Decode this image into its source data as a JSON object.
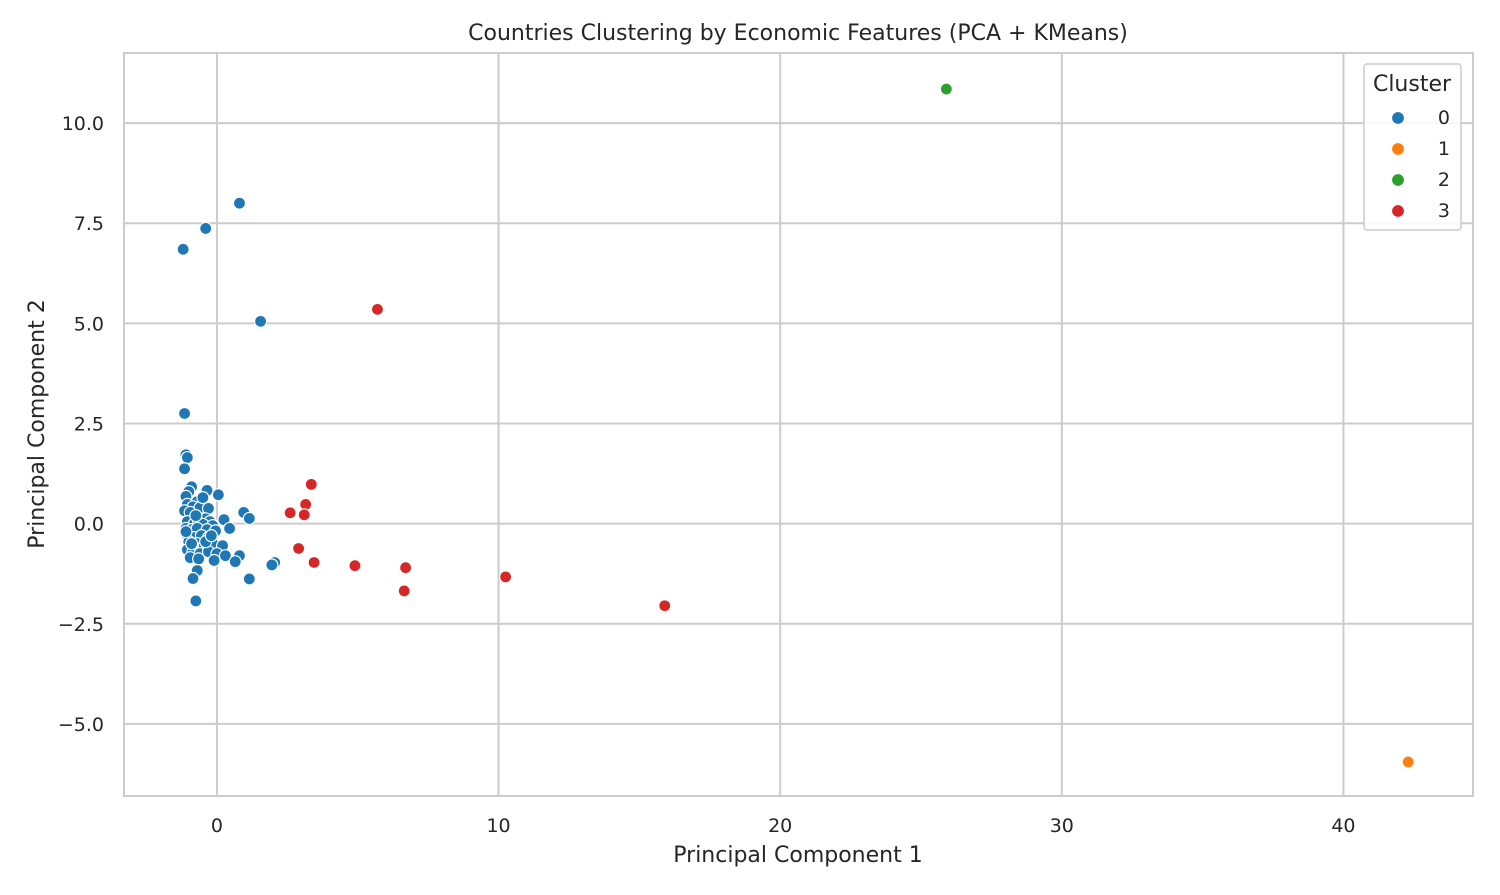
{
  "chart_data": {
    "type": "scatter",
    "title": "Countries Clustering by Economic Features (PCA + KMeans)",
    "xlabel": "Principal Component 1",
    "ylabel": "Principal Component 2",
    "xlim": [
      -3.3,
      44.6
    ],
    "ylim": [
      -6.8,
      11.75
    ],
    "xticks": [
      0,
      10,
      20,
      30,
      40
    ],
    "xtick_labels": [
      "0",
      "10",
      "20",
      "30",
      "40"
    ],
    "yticks": [
      -5.0,
      -2.5,
      0.0,
      2.5,
      5.0,
      7.5,
      10.0
    ],
    "ytick_labels": [
      "−5.0",
      "−2.5",
      "0.0",
      "2.5",
      "5.0",
      "7.5",
      "10.0"
    ],
    "grid": true,
    "legend": {
      "title": "Cluster",
      "placement": "top-right",
      "entries": [
        "0",
        "1",
        "2",
        "3"
      ]
    },
    "series": [
      {
        "name": "0",
        "color": "#1f77b4",
        "points": [
          [
            -1.2,
            6.85
          ],
          [
            -0.4,
            7.37
          ],
          [
            0.8,
            8.0
          ],
          [
            1.55,
            5.05
          ],
          [
            -1.15,
            2.75
          ],
          [
            -1.1,
            1.72
          ],
          [
            -1.05,
            1.65
          ],
          [
            -1.15,
            1.37
          ],
          [
            -0.9,
            0.92
          ],
          [
            -0.35,
            0.83
          ],
          [
            0.05,
            0.72
          ],
          [
            -1.0,
            0.8
          ],
          [
            -1.1,
            0.68
          ],
          [
            -0.7,
            0.55
          ],
          [
            -1.05,
            0.48
          ],
          [
            -0.85,
            0.42
          ],
          [
            -0.6,
            0.4
          ],
          [
            -0.3,
            0.38
          ],
          [
            -1.15,
            0.32
          ],
          [
            -0.95,
            0.28
          ],
          [
            -0.4,
            0.12
          ],
          [
            -0.25,
            0.05
          ],
          [
            0.25,
            0.1
          ],
          [
            0.95,
            0.28
          ],
          [
            1.15,
            0.13
          ],
          [
            -1.05,
            0.05
          ],
          [
            -0.8,
            0.0
          ],
          [
            -0.65,
            0.02
          ],
          [
            -0.5,
            -0.02
          ],
          [
            -0.15,
            -0.05
          ],
          [
            0.45,
            -0.12
          ],
          [
            -1.1,
            -0.12
          ],
          [
            -0.9,
            -0.15
          ],
          [
            -0.7,
            -0.12
          ],
          [
            -0.35,
            -0.15
          ],
          [
            -0.05,
            -0.18
          ],
          [
            -1.05,
            -0.3
          ],
          [
            -0.8,
            -0.35
          ],
          [
            -0.55,
            -0.3
          ],
          [
            -0.3,
            -0.35
          ],
          [
            -1.0,
            -0.45
          ],
          [
            -0.7,
            -0.5
          ],
          [
            -0.45,
            -0.55
          ],
          [
            -0.15,
            -0.5
          ],
          [
            0.2,
            -0.55
          ],
          [
            -1.05,
            -0.65
          ],
          [
            -0.85,
            -0.7
          ],
          [
            -0.6,
            -0.75
          ],
          [
            -0.3,
            -0.7
          ],
          [
            0.0,
            -0.75
          ],
          [
            0.3,
            -0.8
          ],
          [
            0.8,
            -0.8
          ],
          [
            -0.95,
            -0.85
          ],
          [
            -0.65,
            -0.88
          ],
          [
            -0.1,
            -0.92
          ],
          [
            0.65,
            -0.95
          ],
          [
            2.05,
            -0.97
          ],
          [
            1.95,
            -1.03
          ],
          [
            -0.7,
            -1.17
          ],
          [
            -0.85,
            -1.37
          ],
          [
            1.15,
            -1.38
          ],
          [
            -0.75,
            -1.93
          ],
          [
            -1.1,
            -0.2
          ],
          [
            -0.9,
            -0.5
          ],
          [
            -0.4,
            -0.45
          ],
          [
            -0.5,
            0.65
          ],
          [
            -0.75,
            0.2
          ],
          [
            -0.2,
            -0.3
          ]
        ]
      },
      {
        "name": "1",
        "color": "#ff7f0e",
        "points": [
          [
            42.3,
            -5.95
          ]
        ]
      },
      {
        "name": "2",
        "color": "#2ca02c",
        "points": [
          [
            25.9,
            10.85
          ]
        ]
      },
      {
        "name": "3",
        "color": "#d62728",
        "points": [
          [
            5.7,
            5.35
          ],
          [
            3.35,
            0.98
          ],
          [
            3.15,
            0.48
          ],
          [
            2.6,
            0.27
          ],
          [
            3.1,
            0.22
          ],
          [
            2.9,
            -0.62
          ],
          [
            3.45,
            -0.97
          ],
          [
            4.9,
            -1.05
          ],
          [
            6.7,
            -1.1
          ],
          [
            10.25,
            -1.33
          ],
          [
            6.65,
            -1.68
          ],
          [
            15.9,
            -2.05
          ]
        ]
      }
    ]
  }
}
